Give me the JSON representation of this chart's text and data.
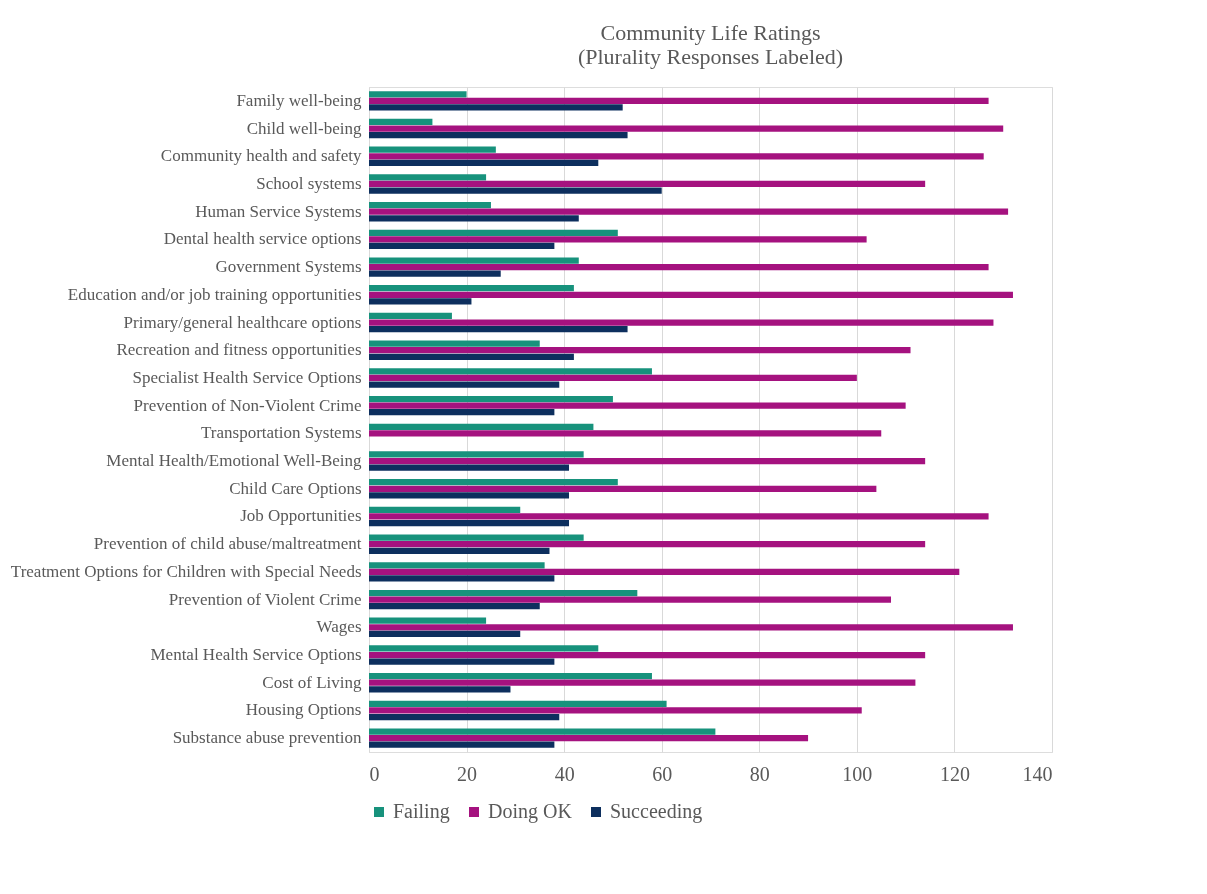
{
  "chart_data": {
    "type": "bar",
    "orientation": "horizontal",
    "title": [
      "Community Life Ratings",
      "(Plurality Responses Labeled)"
    ],
    "categories": [
      "Family well-being",
      "Child well-being",
      "Community health and safety",
      "School systems",
      "Human Service Systems",
      "Dental health service options",
      "Government Systems",
      "Education and/or job training opportunities",
      "Primary/general healthcare options",
      "Recreation and fitness opportunities",
      "Specialist Health Service Options",
      "Prevention of Non-Violent Crime",
      "Transportation Systems",
      "Mental Health/Emotional Well-Being",
      "Child Care Options",
      "Job Opportunities",
      "Prevention of child abuse/maltreatment",
      "Treatment Options for Children with Special Needs",
      "Prevention of Violent Crime",
      "Wages",
      "Mental Health Service Options",
      "Cost of Living",
      "Housing Options",
      "Substance abuse prevention"
    ],
    "series": [
      {
        "name": "Failing",
        "color": "#17927c",
        "values": [
          20,
          13,
          26,
          24,
          25,
          51,
          43,
          42,
          17,
          35,
          58,
          50,
          46,
          44,
          51,
          31,
          44,
          36,
          55,
          24,
          47,
          58,
          61,
          71
        ]
      },
      {
        "name": "Doing OK",
        "color": "#a5127f",
        "values": [
          127,
          130,
          126,
          114,
          131,
          102,
          127,
          132,
          128,
          111,
          100,
          110,
          105,
          114,
          104,
          127,
          114,
          121,
          107,
          132,
          114,
          112,
          101,
          90
        ]
      },
      {
        "name": "Succeeding",
        "color": "#0d2f5e",
        "values": [
          52,
          53,
          47,
          60,
          43,
          38,
          27,
          21,
          53,
          42,
          39,
          38,
          null,
          41,
          41,
          41,
          37,
          38,
          35,
          31,
          38,
          29,
          39,
          38
        ]
      }
    ],
    "xlim": [
      0,
      140
    ],
    "xticks": [
      0,
      20,
      40,
      60,
      80,
      100,
      120,
      140
    ],
    "grid": "x",
    "legend": "bottom"
  }
}
